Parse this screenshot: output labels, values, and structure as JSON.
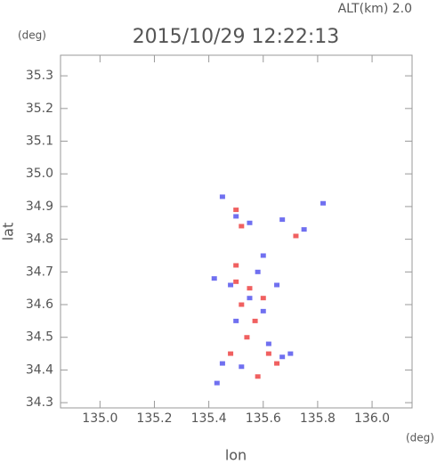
{
  "chart_data": {
    "type": "scatter",
    "title": "2015/10/29 12:22:13",
    "subtitle": "ALT(km) 2.0",
    "x_label": "lon",
    "x_unit": "(deg)",
    "y_label": "lat",
    "y_unit": "(deg)",
    "xlim": [
      134.855,
      136.147
    ],
    "ylim": [
      34.284,
      35.363
    ],
    "xticks": [
      {
        "value": 135.0,
        "label": "135.0"
      },
      135.2,
      135.4,
      135.6,
      135.8,
      {
        "value": 136.0,
        "label": "136.0"
      }
    ],
    "yticks": [
      34.3,
      34.4,
      34.5,
      34.6,
      34.7,
      34.8,
      34.9,
      {
        "value": 35.0,
        "label": "35.0"
      },
      35.1,
      35.2,
      35.3
    ],
    "series": [
      {
        "color": "#7070f0",
        "x": [
          135.45,
          135.5,
          135.55,
          135.67,
          135.75,
          135.82,
          135.42,
          135.48,
          135.55,
          135.6,
          135.65,
          135.5,
          135.62,
          135.67,
          135.52,
          135.45,
          135.43,
          135.6,
          135.58,
          135.7
        ],
        "y": [
          34.93,
          34.87,
          34.85,
          34.86,
          34.83,
          34.91,
          34.68,
          34.66,
          34.62,
          34.58,
          34.66,
          34.55,
          34.48,
          34.44,
          34.41,
          34.42,
          34.36,
          34.75,
          34.7,
          34.45
        ]
      },
      {
        "color": "#f06060",
        "x": [
          135.5,
          135.52,
          135.72,
          135.5,
          135.55,
          135.52,
          135.57,
          135.54,
          135.62,
          135.65,
          135.58,
          135.48,
          135.6,
          135.5
        ],
        "y": [
          34.89,
          34.84,
          34.81,
          34.72,
          34.65,
          34.6,
          34.55,
          34.5,
          34.45,
          34.42,
          34.38,
          34.45,
          34.62,
          34.67
        ]
      }
    ]
  }
}
